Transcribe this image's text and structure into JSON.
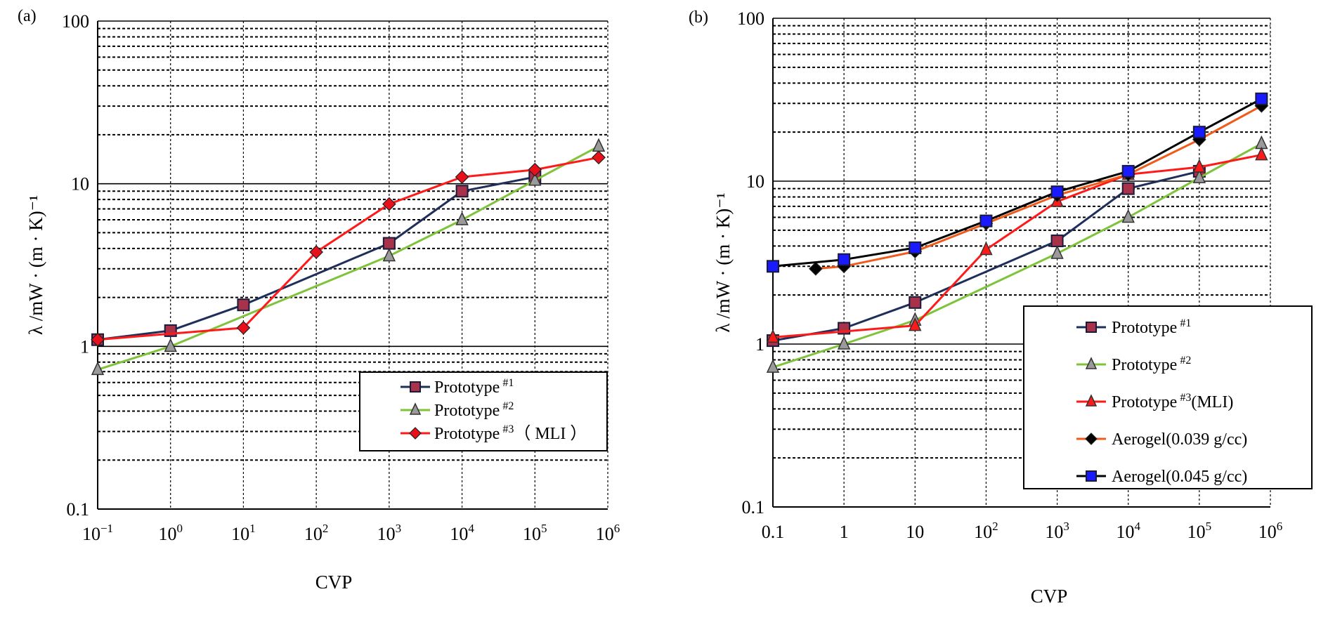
{
  "chart_data": [
    {
      "type": "line",
      "panel_label": "(a)",
      "xlabel": "CVP",
      "ylabel": "λ /mW · (m · K)⁻¹",
      "x_scale": "log",
      "y_scale": "log",
      "xlim": [
        0.1,
        1000000
      ],
      "ylim": [
        0.1,
        100
      ],
      "x_ticks": [
        {
          "value": 0.1,
          "base": "10",
          "exp": "−1"
        },
        {
          "value": 1,
          "base": "10",
          "exp": "0"
        },
        {
          "value": 10,
          "base": "10",
          "exp": "1"
        },
        {
          "value": 100,
          "base": "10",
          "exp": "2"
        },
        {
          "value": 1000,
          "base": "10",
          "exp": "3"
        },
        {
          "value": 10000,
          "base": "10",
          "exp": "4"
        },
        {
          "value": 100000,
          "base": "10",
          "exp": "5"
        },
        {
          "value": 1000000,
          "base": "10",
          "exp": "6"
        }
      ],
      "y_ticks": [
        {
          "value": 0.1,
          "label": "0.1"
        },
        {
          "value": 1,
          "label": "1"
        },
        {
          "value": 10,
          "label": "10"
        },
        {
          "value": 100,
          "label": "100"
        }
      ],
      "grid": "major solid, minor dotted",
      "legend_position": "bottom-right",
      "series": [
        {
          "name": "Prototype",
          "sup": "#1",
          "suffix": "",
          "color": "#1f2f5a",
          "marker": "square",
          "marker_fill": "#a8324a",
          "x": [
            0.1,
            1,
            10,
            1000,
            10000,
            100000
          ],
          "y": [
            1.1,
            1.25,
            1.8,
            4.3,
            9,
            11
          ]
        },
        {
          "name": "Prototype",
          "sup": "#2",
          "suffix": "",
          "color": "#7ec33a",
          "marker": "triangle",
          "marker_fill": "#9a9a9a",
          "x": [
            0.1,
            1,
            1000,
            10000,
            100000,
            750000
          ],
          "y": [
            0.72,
            1,
            3.6,
            6,
            10.5,
            17
          ]
        },
        {
          "name": "Prototype",
          "sup": "#3",
          "suffix": "（ MLI ）",
          "color": "#ff1a1a",
          "marker": "diamond",
          "marker_fill": "#e8101a",
          "x": [
            0.1,
            10,
            100,
            1000,
            10000,
            100000,
            750000
          ],
          "y": [
            1.1,
            1.3,
            3.8,
            7.5,
            11,
            12.2,
            14.5
          ]
        }
      ]
    },
    {
      "type": "line",
      "panel_label": "(b)",
      "xlabel": "CVP",
      "ylabel": "λ /mW · (m · K)⁻¹",
      "x_scale": "log",
      "y_scale": "log",
      "xlim": [
        0.1,
        1000000
      ],
      "ylim": [
        0.1,
        100
      ],
      "x_ticks": [
        {
          "value": 0.1,
          "base": "0.1",
          "exp": ""
        },
        {
          "value": 1,
          "base": "1",
          "exp": ""
        },
        {
          "value": 10,
          "base": "10",
          "exp": ""
        },
        {
          "value": 100,
          "base": "10",
          "exp": "2"
        },
        {
          "value": 1000,
          "base": "10",
          "exp": "3"
        },
        {
          "value": 10000,
          "base": "10",
          "exp": "4"
        },
        {
          "value": 100000,
          "base": "10",
          "exp": "5"
        },
        {
          "value": 1000000,
          "base": "10",
          "exp": "6"
        }
      ],
      "y_ticks": [
        {
          "value": 0.1,
          "label": "0.1"
        },
        {
          "value": 1,
          "label": "1"
        },
        {
          "value": 10,
          "label": "10"
        },
        {
          "value": 100,
          "label": "100"
        }
      ],
      "grid": "major solid, minor dotted",
      "legend_position": "bottom-right",
      "series": [
        {
          "name": "Prototype",
          "sup": "#1",
          "suffix": "",
          "color": "#1f2f5a",
          "marker": "square",
          "marker_fill": "#a8324a",
          "x": [
            0.1,
            1,
            10,
            1000,
            10000,
            100000
          ],
          "y": [
            1.05,
            1.25,
            1.8,
            4.3,
            9,
            11.5
          ]
        },
        {
          "name": "Prototype",
          "sup": "#2",
          "suffix": "",
          "color": "#7ec33a",
          "marker": "triangle",
          "marker_fill": "#9a9a9a",
          "x": [
            0.1,
            1,
            10,
            1000,
            10000,
            100000,
            750000
          ],
          "y": [
            0.72,
            1,
            1.4,
            3.6,
            6,
            10.5,
            17
          ]
        },
        {
          "name": "Prototype",
          "sup": "#3",
          "suffix": "(MLI)",
          "color": "#ff1a1a",
          "marker": "triangle",
          "marker_fill": "#ff1a1a",
          "x": [
            0.1,
            10,
            100,
            1000,
            10000,
            100000,
            750000
          ],
          "y": [
            1.1,
            1.3,
            3.8,
            7.5,
            11,
            12.2,
            14.5
          ]
        },
        {
          "name": "Aerogel(0.039 g/cc)",
          "sup": "",
          "suffix": "",
          "color": "#f05a1a",
          "marker": "diamond",
          "marker_fill": "#000000",
          "x": [
            0.4,
            1,
            10,
            100,
            1000,
            10000,
            100000,
            750000
          ],
          "y": [
            2.9,
            3.0,
            3.7,
            5.5,
            8.2,
            11,
            18,
            29
          ]
        },
        {
          "name": "Aerogel(0.045 g/cc)",
          "sup": "",
          "suffix": "",
          "color": "#000000",
          "marker": "square",
          "marker_fill": "#1a1aff",
          "x": [
            0.1,
            1,
            10,
            100,
            1000,
            10000,
            100000,
            750000
          ],
          "y": [
            3.0,
            3.3,
            3.9,
            5.7,
            8.6,
            11.5,
            20,
            32
          ]
        }
      ]
    }
  ]
}
